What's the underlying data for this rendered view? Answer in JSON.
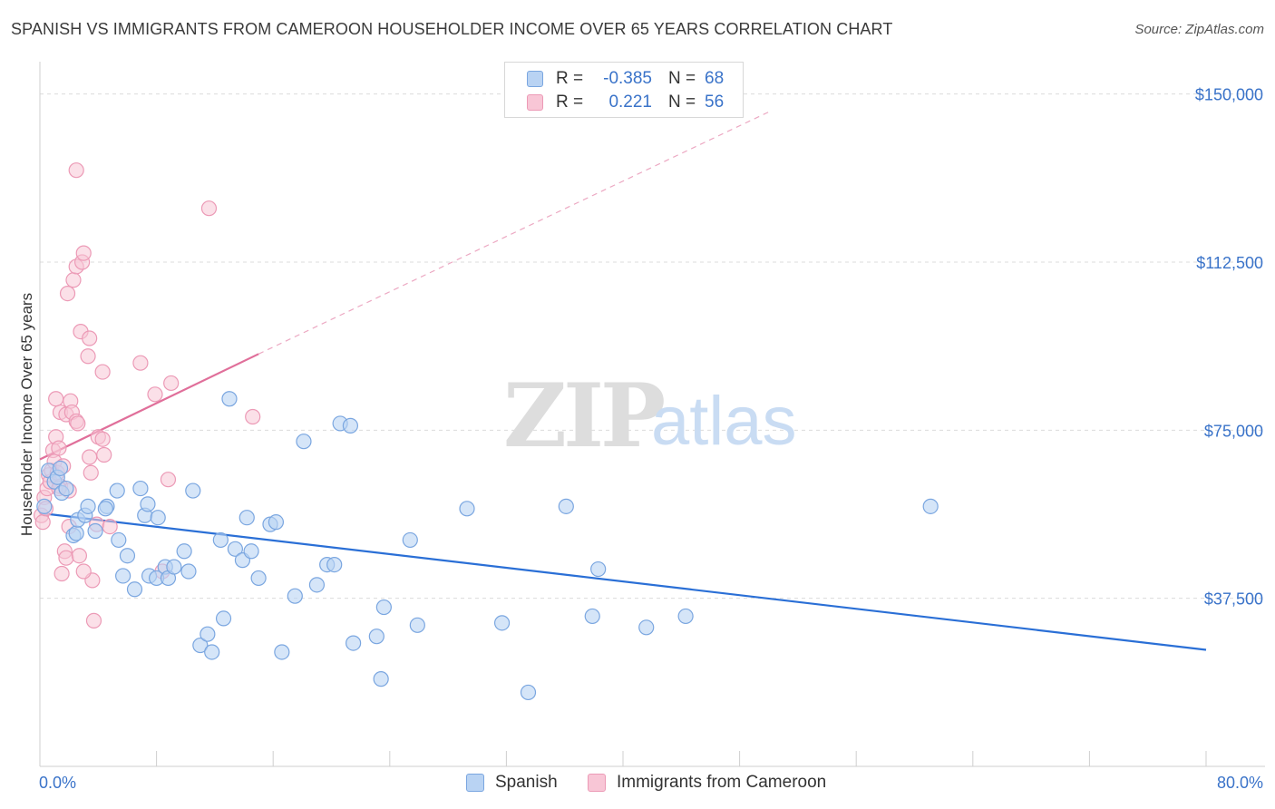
{
  "title": "SPANISH VS IMMIGRANTS FROM CAMEROON HOUSEHOLDER INCOME OVER 65 YEARS CORRELATION CHART",
  "source": "Source: ZipAtlas.com",
  "watermark": {
    "zip": "ZIP",
    "atlas": "atlas"
  },
  "colors": {
    "blue_fill": "#b9d3f3",
    "blue_stroke": "#7aa6e0",
    "blue_line": "#2a6fd6",
    "pink_fill": "#f8c6d6",
    "pink_stroke": "#ec9ab6",
    "pink_line": "#e06f9a",
    "grid": "#dcdcdc",
    "axis_text": "#3a73c9"
  },
  "legend": {
    "rows": [
      {
        "r_label": "R =",
        "r_value": "-0.385",
        "n_label": "N =",
        "n_value": "68"
      },
      {
        "r_label": "R =",
        "r_value": "0.221",
        "n_label": "N =",
        "n_value": "56"
      }
    ]
  },
  "bottom_legend": {
    "spanish": "Spanish",
    "cameroon": "Immigrants from Cameroon"
  },
  "chart_data": {
    "type": "scatter",
    "title": "SPANISH VS IMMIGRANTS FROM CAMEROON HOUSEHOLDER INCOME OVER 65 YEARS CORRELATION CHART",
    "xlabel": "",
    "ylabel": "Householder Income Over 65 years",
    "xlim": [
      0,
      80
    ],
    "ylim": [
      0,
      155000
    ],
    "x_tick_labels": [
      "0.0%",
      "80.0%"
    ],
    "y_ticks": [
      37500,
      75000,
      112500,
      150000
    ],
    "y_tick_labels": [
      "$37,500",
      "$75,000",
      "$112,500",
      "$150,000"
    ],
    "grid": "horizontal dashed",
    "legend_position": "top-center",
    "series": [
      {
        "name": "Spanish",
        "r": -0.385,
        "n": 68,
        "trend": {
          "x": [
            0,
            80
          ],
          "y": [
            56500,
            26000
          ]
        },
        "points": [
          [
            0.3,
            58000
          ],
          [
            0.6,
            66000
          ],
          [
            1.0,
            63500
          ],
          [
            1.2,
            64500
          ],
          [
            1.4,
            66500
          ],
          [
            1.5,
            61000
          ],
          [
            1.8,
            62000
          ],
          [
            2.3,
            51500
          ],
          [
            2.5,
            52000
          ],
          [
            2.6,
            55000
          ],
          [
            3.1,
            56000
          ],
          [
            3.3,
            58000
          ],
          [
            3.8,
            52500
          ],
          [
            4.6,
            58000
          ],
          [
            4.5,
            57500
          ],
          [
            5.3,
            61500
          ],
          [
            5.4,
            50500
          ],
          [
            6.0,
            47000
          ],
          [
            5.7,
            42500
          ],
          [
            6.9,
            62000
          ],
          [
            6.5,
            39500
          ],
          [
            7.2,
            56000
          ],
          [
            7.4,
            58500
          ],
          [
            7.5,
            42500
          ],
          [
            8.1,
            55500
          ],
          [
            8.0,
            42000
          ],
          [
            8.6,
            44500
          ],
          [
            8.8,
            42000
          ],
          [
            9.2,
            44500
          ],
          [
            9.9,
            48000
          ],
          [
            10.2,
            43500
          ],
          [
            10.5,
            61500
          ],
          [
            11.0,
            27000
          ],
          [
            11.5,
            29500
          ],
          [
            11.8,
            25500
          ],
          [
            12.4,
            50500
          ],
          [
            12.6,
            33000
          ],
          [
            13.0,
            82000
          ],
          [
            13.4,
            48500
          ],
          [
            13.9,
            46000
          ],
          [
            14.2,
            55500
          ],
          [
            14.5,
            48000
          ],
          [
            15.0,
            42000
          ],
          [
            15.8,
            54000
          ],
          [
            16.2,
            54500
          ],
          [
            16.6,
            25500
          ],
          [
            17.5,
            38000
          ],
          [
            18.1,
            72500
          ],
          [
            19.0,
            40500
          ],
          [
            19.7,
            45000
          ],
          [
            20.2,
            45000
          ],
          [
            20.6,
            76500
          ],
          [
            21.3,
            76000
          ],
          [
            21.5,
            27500
          ],
          [
            23.1,
            29000
          ],
          [
            23.4,
            19500
          ],
          [
            23.6,
            35500
          ],
          [
            25.4,
            50500
          ],
          [
            25.9,
            31500
          ],
          [
            29.3,
            57500
          ],
          [
            31.7,
            32000
          ],
          [
            33.5,
            16500
          ],
          [
            36.1,
            58000
          ],
          [
            37.9,
            33500
          ],
          [
            38.3,
            44000
          ],
          [
            41.6,
            31000
          ],
          [
            44.3,
            33500
          ],
          [
            61.1,
            58000
          ]
        ]
      },
      {
        "name": "Immigrants from Cameroon",
        "r": 0.221,
        "n": 56,
        "trend": {
          "x": [
            0,
            15
          ],
          "y": [
            68500,
            92000
          ]
        },
        "trend_extension": {
          "x": [
            15,
            50
          ],
          "y": [
            92000,
            146000
          ]
        },
        "points": [
          [
            0.1,
            56000
          ],
          [
            0.2,
            54500
          ],
          [
            0.3,
            60000
          ],
          [
            0.4,
            57500
          ],
          [
            0.5,
            62000
          ],
          [
            0.6,
            65000
          ],
          [
            0.7,
            63500
          ],
          [
            0.8,
            66000
          ],
          [
            0.9,
            70500
          ],
          [
            1.0,
            68000
          ],
          [
            1.1,
            73500
          ],
          [
            1.2,
            65500
          ],
          [
            1.3,
            71000
          ],
          [
            1.4,
            62500
          ],
          [
            1.4,
            79000
          ],
          [
            1.1,
            82000
          ],
          [
            1.5,
            43000
          ],
          [
            1.7,
            48000
          ],
          [
            1.8,
            46500
          ],
          [
            1.6,
            67000
          ],
          [
            1.8,
            78500
          ],
          [
            2.0,
            61500
          ],
          [
            2.1,
            81500
          ],
          [
            2.0,
            53500
          ],
          [
            2.2,
            79000
          ],
          [
            2.5,
            77000
          ],
          [
            2.6,
            76500
          ],
          [
            1.9,
            105500
          ],
          [
            2.3,
            108500
          ],
          [
            2.5,
            111500
          ],
          [
            2.9,
            112500
          ],
          [
            3.0,
            114500
          ],
          [
            2.8,
            97000
          ],
          [
            3.3,
            91500
          ],
          [
            3.4,
            95500
          ],
          [
            3.4,
            69000
          ],
          [
            3.5,
            65500
          ],
          [
            3.6,
            41500
          ],
          [
            3.7,
            32500
          ],
          [
            3.9,
            54000
          ],
          [
            4.0,
            73500
          ],
          [
            4.3,
            88000
          ],
          [
            4.3,
            73000
          ],
          [
            4.4,
            69500
          ],
          [
            4.8,
            53500
          ],
          [
            2.5,
            133000
          ],
          [
            6.9,
            90000
          ],
          [
            7.9,
            83000
          ],
          [
            8.4,
            43500
          ],
          [
            8.8,
            64000
          ],
          [
            9.0,
            85500
          ],
          [
            11.6,
            124500
          ],
          [
            14.6,
            78000
          ],
          [
            3.0,
            43500
          ],
          [
            2.7,
            47000
          ],
          [
            1.3,
            62000
          ]
        ]
      }
    ]
  }
}
